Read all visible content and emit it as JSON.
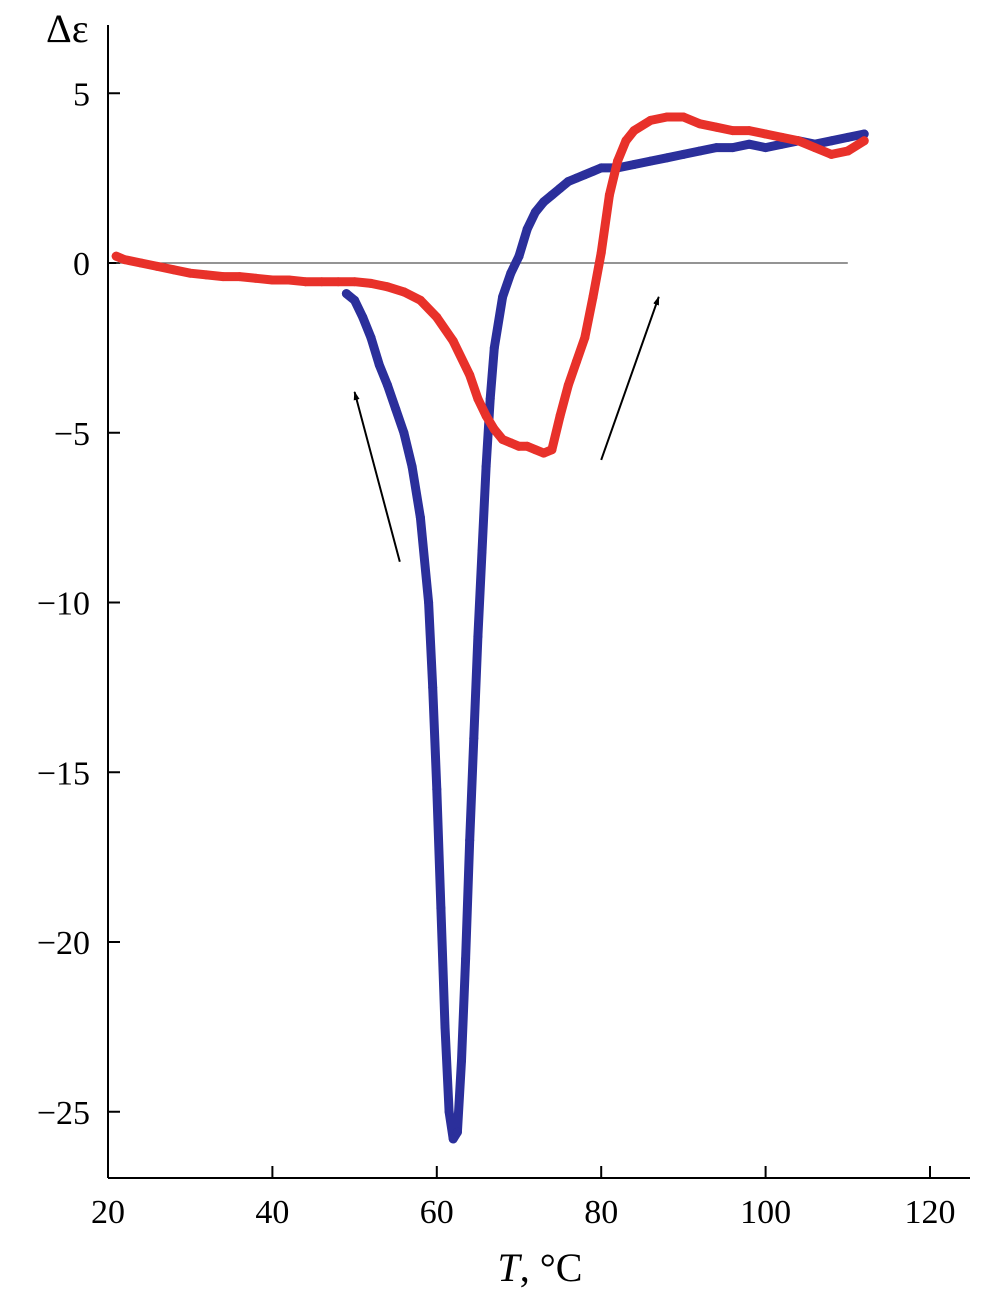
{
  "chart_data": {
    "type": "line",
    "xlabel_var": "T",
    "xlabel_unit": ", °C",
    "ylabel": "Δε",
    "xlim": [
      20,
      125
    ],
    "ylim": [
      -26.5,
      7
    ],
    "xticks": [
      20,
      40,
      60,
      80,
      100,
      120
    ],
    "yticks": [
      5,
      0,
      -5,
      -10,
      -15,
      -20,
      -25
    ],
    "ytick_labels": [
      "5",
      "0",
      "−5",
      "−10",
      "−15",
      "−20",
      "−25"
    ],
    "reference_line": {
      "y": 0,
      "x_range": [
        21,
        110
      ]
    },
    "series": [
      {
        "color": "#2b2f9b",
        "x": [
          49,
          50,
          51,
          52,
          53,
          54,
          55,
          56,
          57,
          58,
          59,
          59.5,
          60,
          60.5,
          61,
          61.5,
          62,
          62.5,
          63,
          63.5,
          64,
          64.5,
          65,
          65.5,
          66,
          66.5,
          67,
          68,
          69,
          70,
          71,
          72,
          73,
          74,
          75,
          76,
          77,
          78,
          79,
          80,
          82,
          84,
          86,
          88,
          90,
          92,
          94,
          96,
          98,
          100,
          102,
          104,
          106,
          108,
          110,
          112
        ],
        "y": [
          -0.9,
          -1.1,
          -1.6,
          -2.2,
          -3.0,
          -3.6,
          -4.3,
          -5.0,
          -6.0,
          -7.5,
          -10.0,
          -12.5,
          -15.5,
          -19.0,
          -22.5,
          -25.0,
          -25.8,
          -25.6,
          -23.5,
          -20.5,
          -17.0,
          -14.0,
          -11.0,
          -8.5,
          -6.0,
          -4.0,
          -2.5,
          -1.0,
          -0.3,
          0.2,
          1.0,
          1.5,
          1.8,
          2.0,
          2.2,
          2.4,
          2.5,
          2.6,
          2.7,
          2.8,
          2.8,
          2.9,
          3.0,
          3.1,
          3.2,
          3.3,
          3.4,
          3.4,
          3.5,
          3.4,
          3.5,
          3.6,
          3.5,
          3.6,
          3.7,
          3.8
        ]
      },
      {
        "color": "#e8312a",
        "x": [
          21,
          22,
          24,
          26,
          28,
          30,
          32,
          34,
          36,
          38,
          40,
          42,
          44,
          46,
          48,
          50,
          52,
          54,
          56,
          58,
          60,
          62,
          64,
          65,
          66,
          67,
          68,
          69,
          70,
          71,
          72,
          73,
          74,
          75,
          76,
          77,
          78,
          79,
          80,
          81,
          82,
          83,
          84,
          86,
          88,
          90,
          92,
          94,
          96,
          98,
          100,
          102,
          104,
          106,
          108,
          110,
          112
        ],
        "y": [
          0.2,
          0.1,
          0.0,
          -0.1,
          -0.2,
          -0.3,
          -0.35,
          -0.4,
          -0.4,
          -0.45,
          -0.5,
          -0.5,
          -0.55,
          -0.55,
          -0.55,
          -0.55,
          -0.6,
          -0.7,
          -0.85,
          -1.1,
          -1.6,
          -2.3,
          -3.3,
          -4.0,
          -4.5,
          -4.9,
          -5.2,
          -5.3,
          -5.4,
          -5.4,
          -5.5,
          -5.6,
          -5.5,
          -4.5,
          -3.6,
          -2.9,
          -2.2,
          -1.0,
          0.3,
          2.0,
          3.0,
          3.6,
          3.9,
          4.2,
          4.3,
          4.3,
          4.1,
          4.0,
          3.9,
          3.9,
          3.8,
          3.7,
          3.6,
          3.4,
          3.2,
          3.3,
          3.6
        ]
      }
    ],
    "annotations": [
      {
        "type": "arrow",
        "from": [
          55.5,
          -8.8
        ],
        "to": [
          50,
          -3.8
        ]
      },
      {
        "type": "arrow",
        "from": [
          80,
          -5.8
        ],
        "to": [
          87,
          -1.0
        ]
      }
    ]
  }
}
